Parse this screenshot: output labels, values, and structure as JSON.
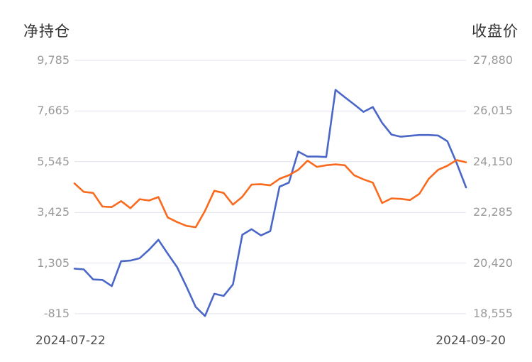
{
  "chart_data": {
    "type": "line",
    "left_axis": {
      "title": "净持仓",
      "ticks": [
        "9,785",
        "7,665",
        "5,545",
        "3,425",
        "1,305",
        "-815"
      ],
      "min": -815,
      "max": 9785
    },
    "right_axis": {
      "title": "收盘价",
      "ticks": [
        "27,880",
        "26,015",
        "24,150",
        "22,285",
        "20,420",
        "18,555"
      ],
      "min": 18555,
      "max": 27880
    },
    "x_axis": {
      "first_label": "2024-07-22",
      "last_label": "2024-09-20"
    },
    "series": [
      {
        "name": "净持仓",
        "axis": "left",
        "color": "#4a67c8",
        "values": [
          1070,
          1040,
          620,
          600,
          340,
          1380,
          1410,
          1510,
          1860,
          2280,
          1700,
          1140,
          330,
          -530,
          -910,
          20,
          -70,
          410,
          2490,
          2720,
          2460,
          2640,
          4500,
          4670,
          5970,
          5760,
          5760,
          5740,
          8550,
          8240,
          7940,
          7630,
          7830,
          7170,
          6680,
          6590,
          6630,
          6660,
          6660,
          6640,
          6400,
          5480,
          4470
        ]
      },
      {
        "name": "收盘价",
        "axis": "right",
        "color": "#fa6a1e",
        "values": [
          23350,
          23040,
          23000,
          22500,
          22480,
          22700,
          22440,
          22770,
          22720,
          22850,
          22100,
          21930,
          21790,
          21740,
          22340,
          23080,
          23000,
          22570,
          22860,
          23310,
          23320,
          23280,
          23520,
          23650,
          23850,
          24190,
          23960,
          24020,
          24050,
          24020,
          23650,
          23500,
          23380,
          22630,
          22800,
          22780,
          22740,
          22970,
          23520,
          23850,
          24000,
          24210,
          24130
        ]
      }
    ],
    "layout": {
      "grid": "horizontal-only",
      "legend": "none",
      "grid_color": "#e0e3ee",
      "background": "#ffffff",
      "tick_text_color": "#999999",
      "title_text_color": "#333333",
      "date_text_color": "#4d4d4d"
    }
  }
}
